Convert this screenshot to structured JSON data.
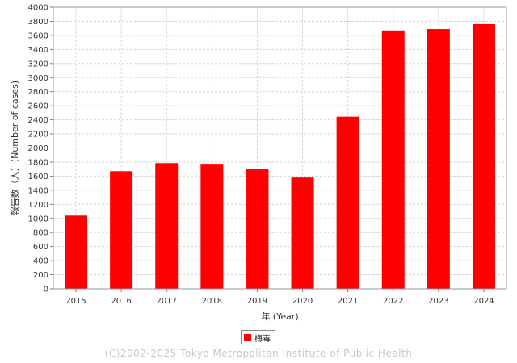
{
  "chart_data": {
    "type": "bar",
    "categories": [
      "2015",
      "2016",
      "2017",
      "2018",
      "2019",
      "2020",
      "2021",
      "2022",
      "2023",
      "2024"
    ],
    "series": [
      {
        "name": "梅毒",
        "values": [
          1040,
          1670,
          1785,
          1775,
          1705,
          1580,
          2445,
          3670,
          3690,
          3760
        ]
      }
    ],
    "ylim": [
      0,
      4000
    ],
    "ytick_step": 200,
    "xlabel": "年 (Year)",
    "ylabel": "報告数（人）(Number of cases)",
    "grid": true,
    "legend_position": "bottom-center",
    "bar_color": "#ff0000"
  },
  "footer": {
    "copyright": "(C)2002-2025 Tokyo Metropolitan Institute of Public Health"
  }
}
